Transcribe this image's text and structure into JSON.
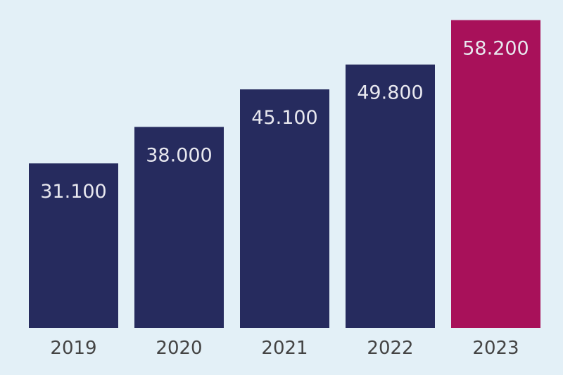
{
  "chart_data": {
    "type": "bar",
    "title": "",
    "xlabel": "",
    "ylabel": "",
    "categories": [
      "2019",
      "2020",
      "2021",
      "2022",
      "2023"
    ],
    "values": [
      31100,
      38000,
      45100,
      49800,
      58200
    ],
    "data_labels": [
      "31.100",
      "38.000",
      "45.100",
      "49.800",
      "58.200"
    ],
    "ylim": [
      0,
      62000
    ],
    "grid": false,
    "legend": "none",
    "colors": {
      "default": "#262b5e",
      "highlight": "#a8115a",
      "background": "#e3f0f7",
      "label_text": "#e8e8ef",
      "tick_text": "#444444"
    },
    "highlight_index": 4
  }
}
